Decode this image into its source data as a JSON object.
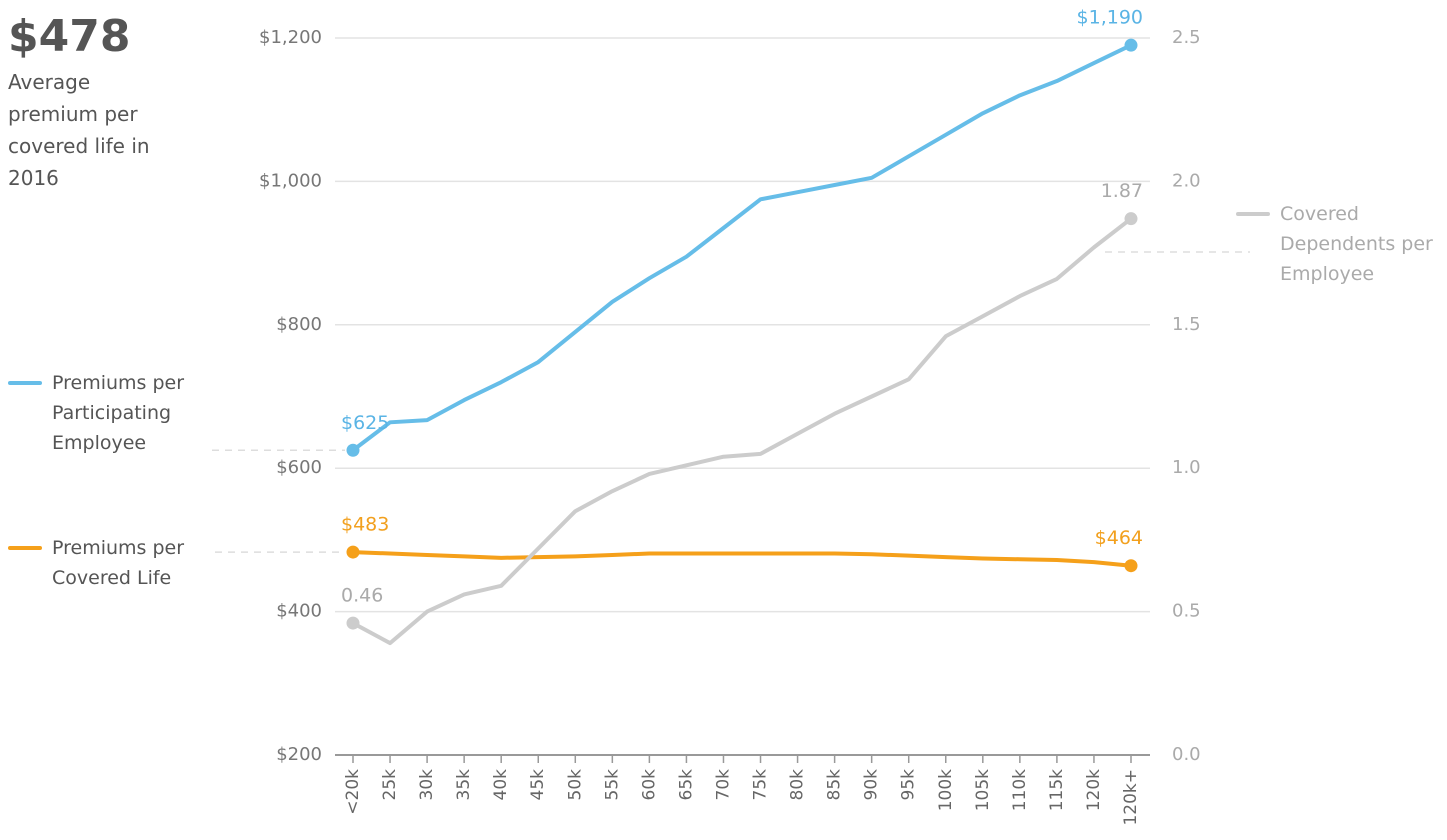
{
  "chart_data": {
    "type": "line",
    "headline": {
      "value": "$478",
      "text": "Average premium per covered life in 2016"
    },
    "categories": [
      "<20k",
      "25k",
      "30k",
      "35k",
      "40k",
      "45k",
      "50k",
      "55k",
      "60k",
      "65k",
      "70k",
      "75k",
      "80k",
      "85k",
      "90k",
      "95k",
      "100k",
      "105k",
      "110k",
      "115k",
      "120k",
      "120k+"
    ],
    "series": [
      {
        "name": "Premiums per Participating Employee",
        "color": "#66bde8",
        "label_color": "#5ab4e5",
        "values": [
          625,
          664,
          667,
          695,
          720,
          748,
          790,
          832,
          865,
          895,
          935,
          975,
          985,
          995,
          1005,
          1035,
          1065,
          1095,
          1120,
          1140,
          1165,
          1190
        ],
        "value_labels": [
          "$625",
          null,
          null,
          null,
          null,
          null,
          null,
          null,
          null,
          null,
          null,
          null,
          null,
          null,
          null,
          null,
          null,
          null,
          null,
          null,
          null,
          "$1,190"
        ]
      },
      {
        "name": "Premiums per Covered Life",
        "color": "#f5a01a",
        "label_color": "#f2a01e",
        "values": [
          483,
          481,
          479,
          477,
          475,
          476,
          477,
          479,
          481,
          481,
          481,
          481,
          481,
          481,
          480,
          478,
          476,
          474,
          473,
          472,
          469,
          464
        ],
        "value_labels": [
          "$483",
          null,
          null,
          null,
          null,
          null,
          null,
          null,
          null,
          null,
          null,
          null,
          null,
          null,
          null,
          null,
          null,
          null,
          null,
          null,
          null,
          "$464"
        ]
      },
      {
        "name": "Covered Dependents per Employee",
        "color": "#cccccc",
        "label_color": "#aaaaaa",
        "axis": "y2",
        "values": [
          0.46,
          0.39,
          0.5,
          0.56,
          0.59,
          0.72,
          0.85,
          0.92,
          0.98,
          1.01,
          1.04,
          1.05,
          1.12,
          1.19,
          1.25,
          1.31,
          1.46,
          1.53,
          1.6,
          1.66,
          1.77,
          1.87
        ]
      }
    ],
    "ylim": [
      200,
      1200
    ],
    "yticks": [
      {
        "value": 200,
        "label": "$200"
      },
      {
        "value": 400,
        "label": "$400"
      },
      {
        "value": 600,
        "label": "$600"
      },
      {
        "value": 800,
        "label": "$800"
      },
      {
        "value": 1000,
        "label": "$1,000"
      },
      {
        "value": 1200,
        "label": "$1,200"
      }
    ],
    "y2lim": [
      0,
      2.5
    ],
    "y2ticks": [
      {
        "value": 0,
        "label": "0.0"
      },
      0.5,
      {
        "value": 1,
        "label": "1.0"
      },
      1.5,
      {
        "value": 2,
        "label": "2.0"
      },
      2.5
    ],
    "grid": true
  }
}
